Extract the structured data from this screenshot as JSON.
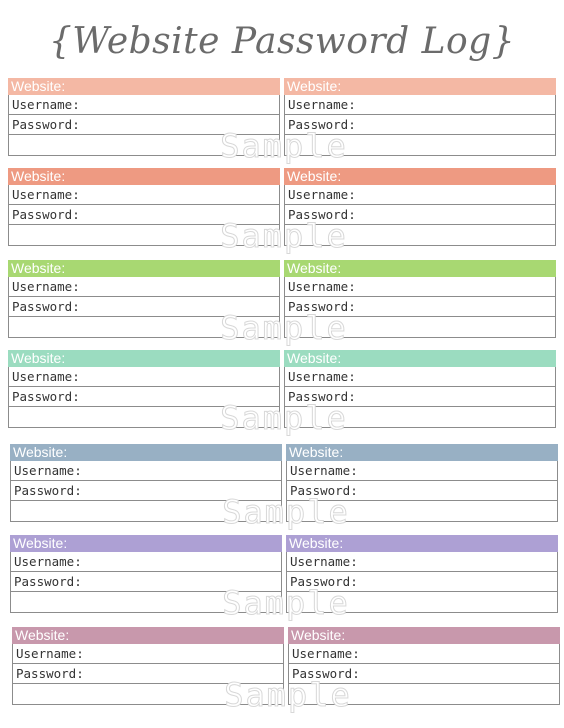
{
  "title": "{Website Password Log}",
  "labels": {
    "website": "Website:",
    "username": "Username:",
    "password": "Password:"
  },
  "watermark": "Sample",
  "section_colors": [
    "#f4b8a4",
    "#ee9a82",
    "#a8d872",
    "#9bdcc0",
    "#98b0c4",
    "#ada0d4",
    "#c898ac"
  ]
}
